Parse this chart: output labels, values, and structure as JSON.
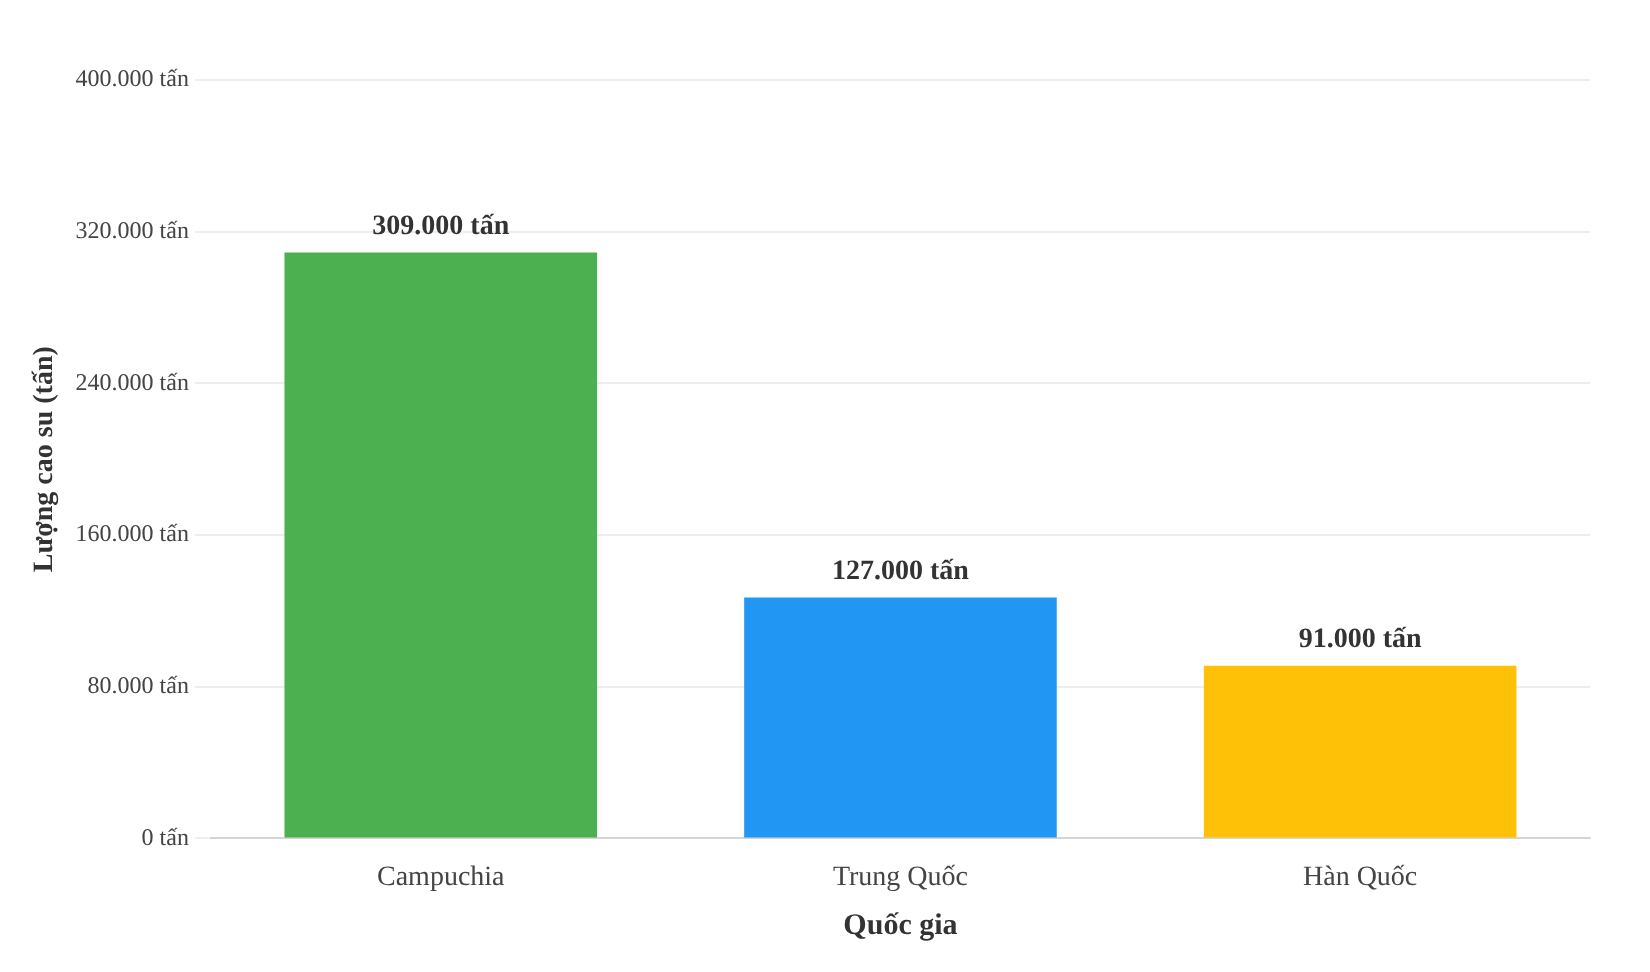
{
  "chart_data": {
    "type": "bar",
    "xlabel": "Quốc gia",
    "ylabel": "Lượng cao su (tấn)",
    "categories": [
      "Campuchia",
      "Trung Quốc",
      "Hàn Quốc"
    ],
    "values": [
      309000,
      127000,
      91000
    ],
    "colors": [
      "#4caf50",
      "#2196f3",
      "#ffc107"
    ],
    "value_labels": [
      "309.000 tấn",
      "127.000 tấn",
      "91.000 tấn"
    ],
    "ylim": [
      0,
      400000
    ],
    "yticks": [
      {
        "value": 0,
        "label": "0 tấn"
      },
      {
        "value": 80000,
        "label": "80.000 tấn"
      },
      {
        "value": 160000,
        "label": "160.000 tấn"
      },
      {
        "value": 240000,
        "label": "240.000 tấn"
      },
      {
        "value": 320000,
        "label": "320.000 tấn"
      },
      {
        "value": 400000,
        "label": "400.000 tấn"
      }
    ],
    "grid": "y",
    "legend": false
  }
}
